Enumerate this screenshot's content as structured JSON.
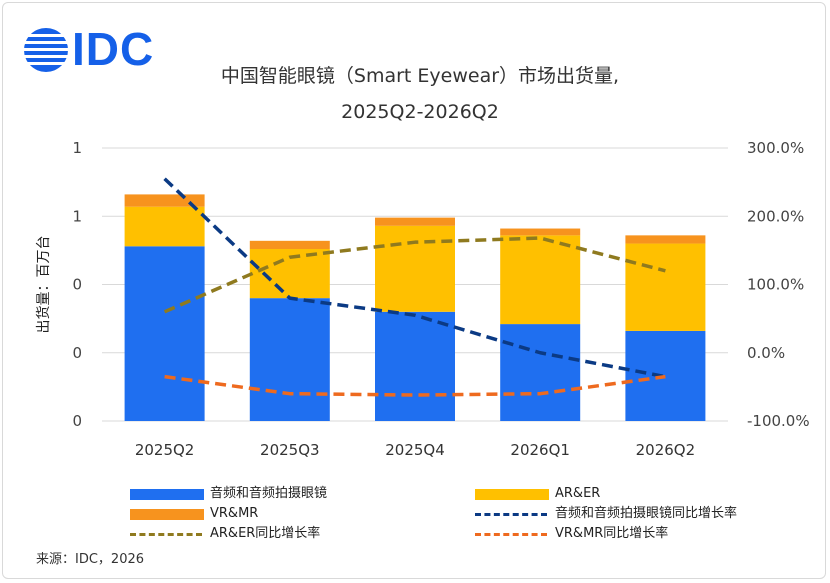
{
  "brand": {
    "logo_text": "IDC",
    "logo_color": "#1560e8"
  },
  "title_line1": "中国智能眼镜（Smart Eyewear）市场出货量,",
  "title_line2": "2025Q2-2026Q2",
  "source": "来源：IDC，2026",
  "chart_data": {
    "type": "bar",
    "stacked": true,
    "categories": [
      "2025Q2",
      "2025Q3",
      "2025Q4",
      "2026Q1",
      "2026Q2"
    ],
    "ylabel": "出货量：百万台",
    "y_tick_labels": [
      "1",
      "1",
      "0",
      "0",
      "0"
    ],
    "y2_tick_labels": [
      "300.0%",
      "200.0%",
      "100.0%",
      "0.0%",
      "-100.0%"
    ],
    "y2lim": [
      -100,
      300
    ],
    "grid": true,
    "legend_position": "bottom",
    "series": [
      {
        "name": "音频和音频拍摄眼镜",
        "kind": "bar",
        "color": "#1f6ff0",
        "values": [
          1.28,
          0.9,
          0.8,
          0.71,
          0.66
        ]
      },
      {
        "name": "AR&ER",
        "kind": "bar",
        "color": "#ffc000",
        "values": [
          0.29,
          0.36,
          0.63,
          0.65,
          0.64
        ]
      },
      {
        "name": "VR&MR",
        "kind": "bar",
        "color": "#f7931e",
        "values": [
          0.09,
          0.06,
          0.06,
          0.05,
          0.06
        ]
      },
      {
        "name": "音频和音频拍摄眼镜同比增长率",
        "kind": "line",
        "axis": "right",
        "color": "#0b3a84",
        "values": [
          255,
          80,
          55,
          0,
          -35
        ]
      },
      {
        "name": "AR&ER同比增长率",
        "kind": "line",
        "axis": "right",
        "color": "#8f7a1f",
        "values": [
          60,
          140,
          162,
          168,
          120
        ]
      },
      {
        "name": "VR&MR同比增长率",
        "kind": "line",
        "axis": "right",
        "color": "#ee6a1f",
        "values": [
          -35,
          -60,
          -62,
          -60,
          -35
        ]
      }
    ]
  }
}
